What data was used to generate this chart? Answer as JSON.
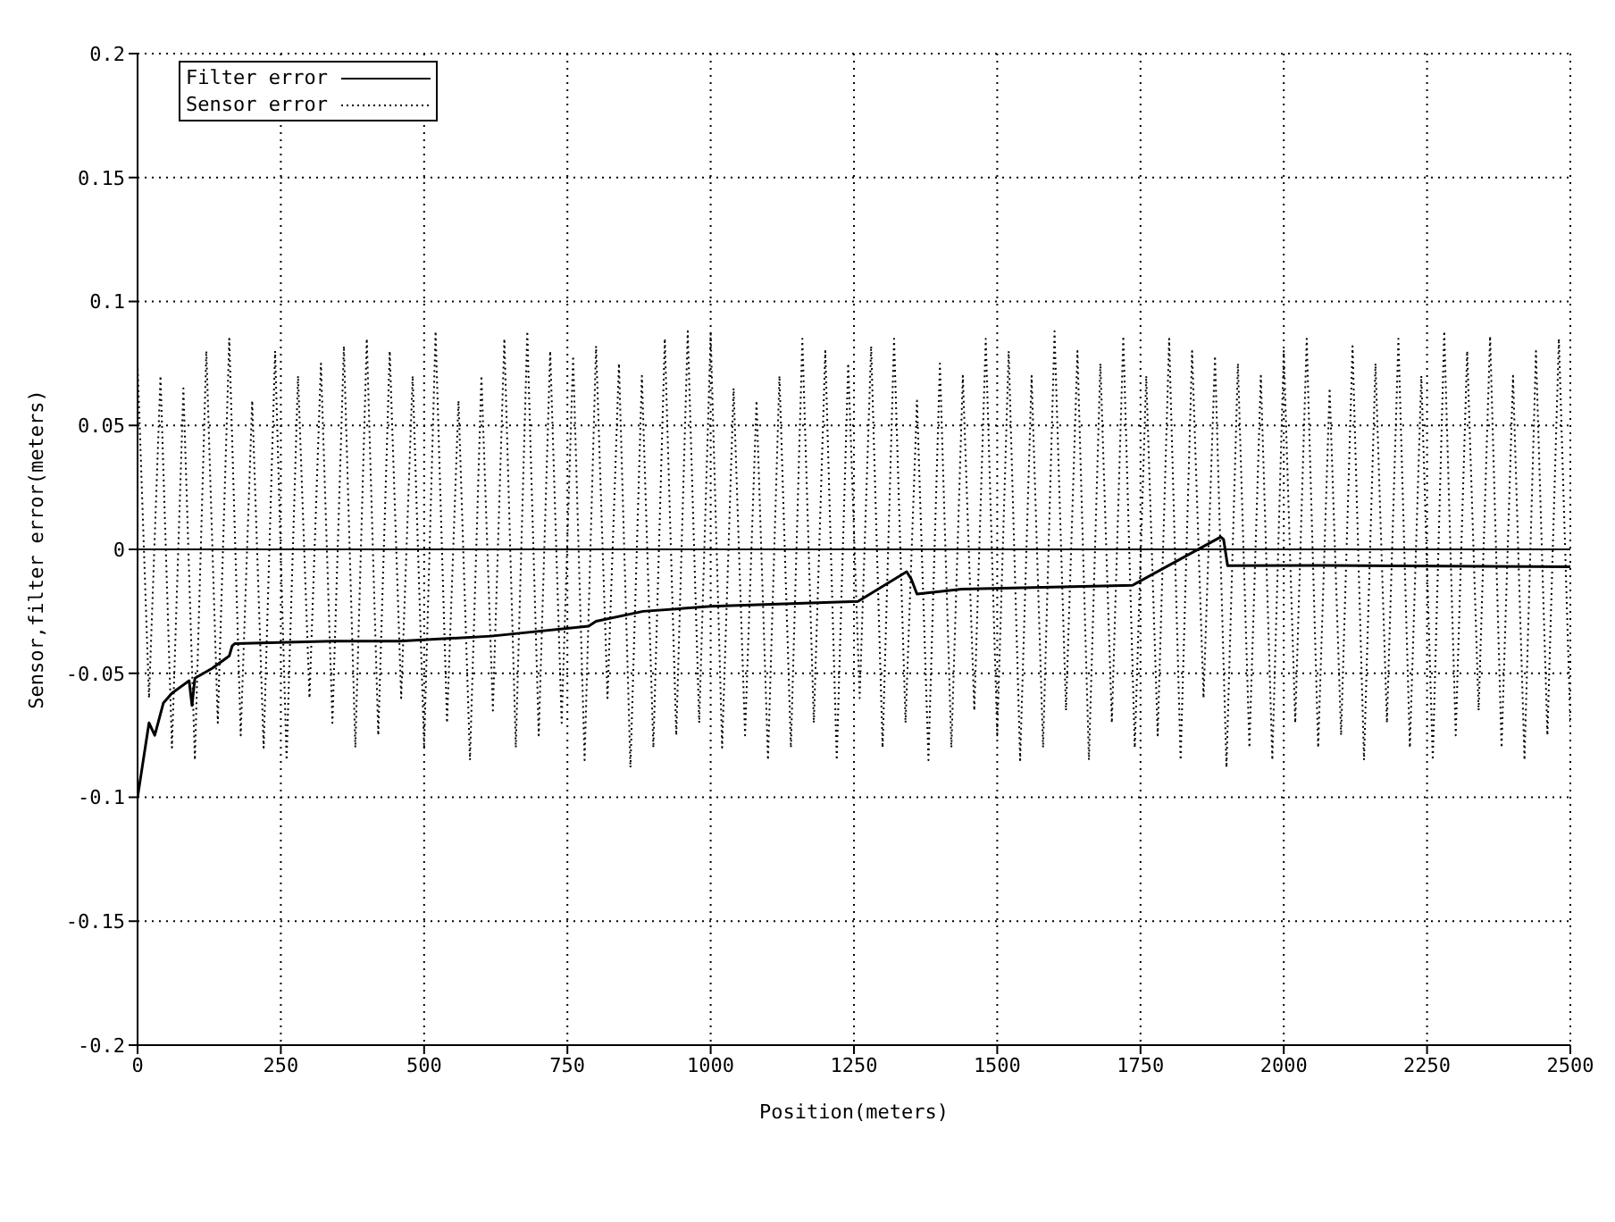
{
  "chart_data": {
    "type": "line",
    "xlabel": "Position(meters)",
    "ylabel": "Sensor,filter error(meters)",
    "xlim": [
      0,
      2500
    ],
    "xticks": [
      0,
      250,
      500,
      750,
      1000,
      1250,
      1500,
      1750,
      2000,
      2250,
      2500
    ],
    "ylim": [
      -0.2,
      0.2
    ],
    "yticks": [
      -0.2,
      -0.15,
      -0.1,
      -0.05,
      0,
      0.05,
      0.1,
      0.15,
      0.2
    ],
    "grid": true,
    "legend": "top left",
    "marker": "none",
    "ref_lines": [
      {
        "axis": "y",
        "value": 0,
        "label": null,
        "color": "#000000",
        "line_style": "solid"
      }
    ],
    "series": [
      {
        "name": "Filter error",
        "color": "#000000",
        "line_style": "solid",
        "x": [
          0,
          10,
          20,
          30,
          45,
          60,
          90,
          95,
          100,
          130,
          160,
          165,
          170,
          340,
          457,
          617,
          787,
          800,
          882,
          1000,
          1257,
          1342,
          1350,
          1360,
          1438,
          1736,
          1890,
          1895,
          1902,
          2065,
          2500
        ],
        "values": [
          -0.1,
          -0.085,
          -0.07,
          -0.075,
          -0.062,
          -0.058,
          -0.053,
          -0.063,
          -0.052,
          -0.048,
          -0.043,
          -0.039,
          -0.038,
          -0.037,
          -0.037,
          -0.035,
          -0.031,
          -0.029,
          -0.025,
          -0.023,
          -0.021,
          -0.009,
          -0.012,
          -0.018,
          -0.016,
          -0.0145,
          0.005,
          0.004,
          -0.0066,
          -0.0065,
          -0.007
        ]
      },
      {
        "name": "Sensor error",
        "color": "#000000",
        "line_style": "dotted",
        "x": [
          0,
          20,
          40,
          60,
          80,
          100,
          120,
          140,
          160,
          180,
          200,
          220,
          240,
          260,
          280,
          300,
          320,
          340,
          360,
          380,
          400,
          420,
          440,
          460,
          480,
          500,
          520,
          540,
          560,
          580,
          600,
          620,
          640,
          660,
          680,
          700,
          720,
          740,
          760,
          780,
          800,
          820,
          840,
          860,
          880,
          900,
          920,
          940,
          960,
          980,
          1000,
          1020,
          1040,
          1060,
          1080,
          1100,
          1120,
          1140,
          1160,
          1180,
          1200,
          1220,
          1240,
          1260,
          1280,
          1300,
          1320,
          1340,
          1360,
          1380,
          1400,
          1420,
          1440,
          1460,
          1480,
          1500,
          1520,
          1540,
          1560,
          1580,
          1600,
          1620,
          1640,
          1660,
          1680,
          1700,
          1720,
          1740,
          1760,
          1780,
          1800,
          1820,
          1840,
          1860,
          1880,
          1900,
          1920,
          1940,
          1960,
          1980,
          2000,
          2020,
          2040,
          2060,
          2080,
          2100,
          2120,
          2140,
          2160,
          2180,
          2200,
          2220,
          2240,
          2260,
          2280,
          2300,
          2320,
          2340,
          2360,
          2380,
          2400,
          2420,
          2440,
          2460,
          2480,
          2500
        ],
        "values": [
          0.075,
          -0.06,
          0.07,
          -0.08,
          0.065,
          -0.085,
          0.08,
          -0.07,
          0.085,
          -0.075,
          0.06,
          -0.08,
          0.08,
          -0.085,
          0.07,
          -0.06,
          0.075,
          -0.07,
          0.082,
          -0.08,
          0.085,
          -0.075,
          0.08,
          -0.06,
          0.07,
          -0.08,
          0.088,
          -0.07,
          0.06,
          -0.085,
          0.07,
          -0.065,
          0.085,
          -0.08,
          0.088,
          -0.075,
          0.08,
          -0.07,
          0.078,
          -0.085,
          0.082,
          -0.06,
          0.075,
          -0.088,
          0.07,
          -0.08,
          0.085,
          -0.075,
          0.088,
          -0.07,
          0.087,
          -0.08,
          0.065,
          -0.075,
          0.06,
          -0.085,
          0.07,
          -0.08,
          0.085,
          -0.07,
          0.08,
          -0.085,
          0.075,
          -0.06,
          0.082,
          -0.08,
          0.085,
          -0.07,
          0.06,
          -0.085,
          0.075,
          -0.08,
          0.07,
          -0.065,
          0.085,
          -0.075,
          0.08,
          -0.085,
          0.07,
          -0.08,
          0.088,
          -0.065,
          0.08,
          -0.085,
          0.075,
          -0.07,
          0.086,
          -0.08,
          0.07,
          -0.075,
          0.085,
          -0.085,
          0.08,
          -0.06,
          0.078,
          -0.088,
          0.075,
          -0.08,
          0.07,
          -0.085,
          0.08,
          -0.07,
          0.085,
          -0.08,
          0.065,
          -0.075,
          0.082,
          -0.085,
          0.075,
          -0.07,
          0.085,
          -0.08,
          0.07,
          -0.085,
          0.088,
          -0.075,
          0.08,
          -0.065,
          0.086,
          -0.08,
          0.07,
          -0.085,
          0.08,
          -0.075,
          0.085,
          -0.07
        ]
      }
    ]
  }
}
